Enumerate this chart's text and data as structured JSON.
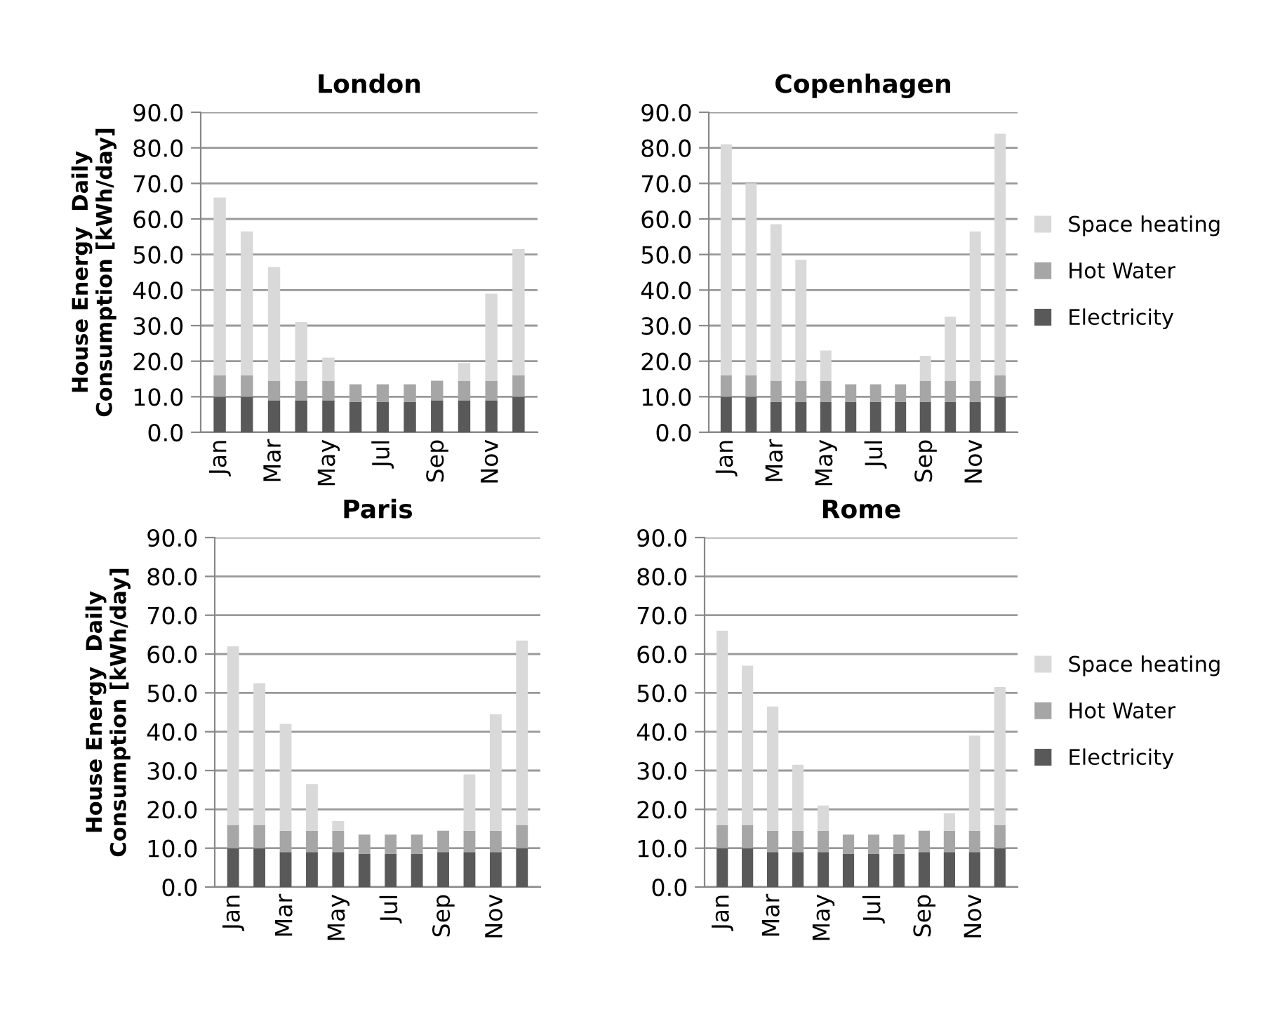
{
  "chart_data": [
    {
      "type": "bar",
      "title": "London",
      "ylabel": "House Energy  Daily\nConsumption [kWh/day]",
      "stacked": true,
      "grid": "y",
      "legend": false,
      "categories": [
        "Jan",
        null,
        "Mar",
        null,
        "May",
        null,
        "Jul",
        null,
        "Sep",
        null,
        "Nov",
        null
      ],
      "ylim": [
        0,
        90
      ],
      "yticks": [
        {
          "value": 0,
          "label": "0.0"
        },
        {
          "value": 10,
          "label": "10.0"
        },
        {
          "value": 20,
          "label": "20.0"
        },
        {
          "value": 30,
          "label": "30.0"
        },
        {
          "value": 40,
          "label": "40.0"
        },
        {
          "value": 50,
          "label": "50.0"
        },
        {
          "value": 60,
          "label": "60.0"
        },
        {
          "value": 70,
          "label": "70.0"
        },
        {
          "value": 80,
          "label": "80.0"
        },
        {
          "value": 90,
          "label": "90.0"
        }
      ],
      "series": [
        {
          "color": "#595959",
          "values": [
            10,
            10,
            9,
            9,
            9,
            8.5,
            8.5,
            8.5,
            9,
            9,
            9,
            10
          ]
        },
        {
          "color": "#a6a6a6",
          "values": [
            6,
            6,
            5.5,
            5.5,
            5.5,
            5,
            5,
            5,
            5.5,
            5.5,
            5.5,
            6
          ]
        },
        {
          "color": "#d9d9d9",
          "values": [
            50,
            40.5,
            32,
            16.5,
            6.5,
            0,
            0,
            0,
            0,
            5,
            24.5,
            35.5
          ]
        }
      ]
    },
    {
      "type": "bar",
      "title": "Copenhagen",
      "stacked": true,
      "grid": "y",
      "legend": "right",
      "categories": [
        "Jan",
        null,
        "Mar",
        null,
        "May",
        null,
        "Jul",
        null,
        "Sep",
        null,
        "Nov",
        null
      ],
      "ylim": [
        0,
        90
      ],
      "yticks": [
        {
          "value": 0,
          "label": "0.0"
        },
        {
          "value": 10,
          "label": "10.0"
        },
        {
          "value": 20,
          "label": "20.0"
        },
        {
          "value": 30,
          "label": "30.0"
        },
        {
          "value": 40,
          "label": "40.0"
        },
        {
          "value": 50,
          "label": "50.0"
        },
        {
          "value": 60,
          "label": "60.0"
        },
        {
          "value": 70,
          "label": "70.0"
        },
        {
          "value": 80,
          "label": "80.0"
        },
        {
          "value": 90,
          "label": "90.0"
        }
      ],
      "series": [
        {
          "name": "Electricity",
          "color": "#595959",
          "values": [
            10,
            10,
            8.5,
            8.5,
            8.5,
            8.5,
            8.5,
            8.5,
            8.5,
            8.5,
            8.5,
            10
          ]
        },
        {
          "name": "Hot Water",
          "color": "#a6a6a6",
          "values": [
            6,
            6,
            6,
            6,
            6,
            5,
            5,
            5,
            6,
            6,
            6,
            6
          ]
        },
        {
          "name": "Space heating",
          "color": "#d9d9d9",
          "values": [
            65,
            54,
            44,
            34,
            8.5,
            0,
            0,
            0,
            7,
            18,
            42,
            68
          ]
        }
      ]
    },
    {
      "type": "bar",
      "title": "Paris",
      "ylabel": "House Energy  Daily\nConsumption [kWh/day]",
      "stacked": true,
      "grid": "y",
      "legend": false,
      "categories": [
        "Jan",
        null,
        "Mar",
        null,
        "May",
        null,
        "Jul",
        null,
        "Sep",
        null,
        "Nov",
        null
      ],
      "ylim": [
        0,
        90
      ],
      "yticks": [
        {
          "value": 0,
          "label": "0.0"
        },
        {
          "value": 10,
          "label": "10.0"
        },
        {
          "value": 20,
          "label": "20.0"
        },
        {
          "value": 30,
          "label": "30.0"
        },
        {
          "value": 40,
          "label": "40.0"
        },
        {
          "value": 50,
          "label": "50.0"
        },
        {
          "value": 60,
          "label": "60.0"
        },
        {
          "value": 70,
          "label": "70.0"
        },
        {
          "value": 80,
          "label": "80.0"
        },
        {
          "value": 90,
          "label": "90.0"
        }
      ],
      "series": [
        {
          "color": "#595959",
          "values": [
            10,
            10,
            9,
            9,
            9,
            8.5,
            8.5,
            8.5,
            9,
            9,
            9,
            10
          ]
        },
        {
          "color": "#a6a6a6",
          "values": [
            6,
            6,
            5.5,
            5.5,
            5.5,
            5,
            5,
            5,
            5.5,
            5.5,
            5.5,
            6
          ]
        },
        {
          "color": "#d9d9d9",
          "values": [
            46,
            36.5,
            27.5,
            12,
            2.5,
            0,
            0,
            0,
            0,
            14.5,
            30,
            47.5
          ]
        }
      ]
    },
    {
      "type": "bar",
      "title": "Rome",
      "stacked": true,
      "grid": "y",
      "legend": "right",
      "categories": [
        "Jan",
        null,
        "Mar",
        null,
        "May",
        null,
        "Jul",
        null,
        "Sep",
        null,
        "Nov",
        null
      ],
      "ylim": [
        0,
        90
      ],
      "yticks": [
        {
          "value": 0,
          "label": "0.0"
        },
        {
          "value": 10,
          "label": "10.0"
        },
        {
          "value": 20,
          "label": "20.0"
        },
        {
          "value": 30,
          "label": "30.0"
        },
        {
          "value": 40,
          "label": "40.0"
        },
        {
          "value": 50,
          "label": "50.0"
        },
        {
          "value": 60,
          "label": "60.0"
        },
        {
          "value": 70,
          "label": "70.0"
        },
        {
          "value": 80,
          "label": "80.0"
        },
        {
          "value": 90,
          "label": "90.0"
        }
      ],
      "series": [
        {
          "name": "Electricity",
          "color": "#595959",
          "values": [
            10,
            10,
            9,
            9,
            9,
            8.5,
            8.5,
            8.5,
            9,
            9,
            9,
            10
          ]
        },
        {
          "name": "Hot Water",
          "color": "#a6a6a6",
          "values": [
            6,
            6,
            5.5,
            5.5,
            5.5,
            5,
            5,
            5,
            5.5,
            5.5,
            5.5,
            6
          ]
        },
        {
          "name": "Space heating",
          "color": "#d9d9d9",
          "values": [
            50,
            41,
            32,
            17,
            6.5,
            0,
            0,
            0,
            0,
            4.5,
            24.5,
            35.5
          ]
        }
      ]
    }
  ]
}
